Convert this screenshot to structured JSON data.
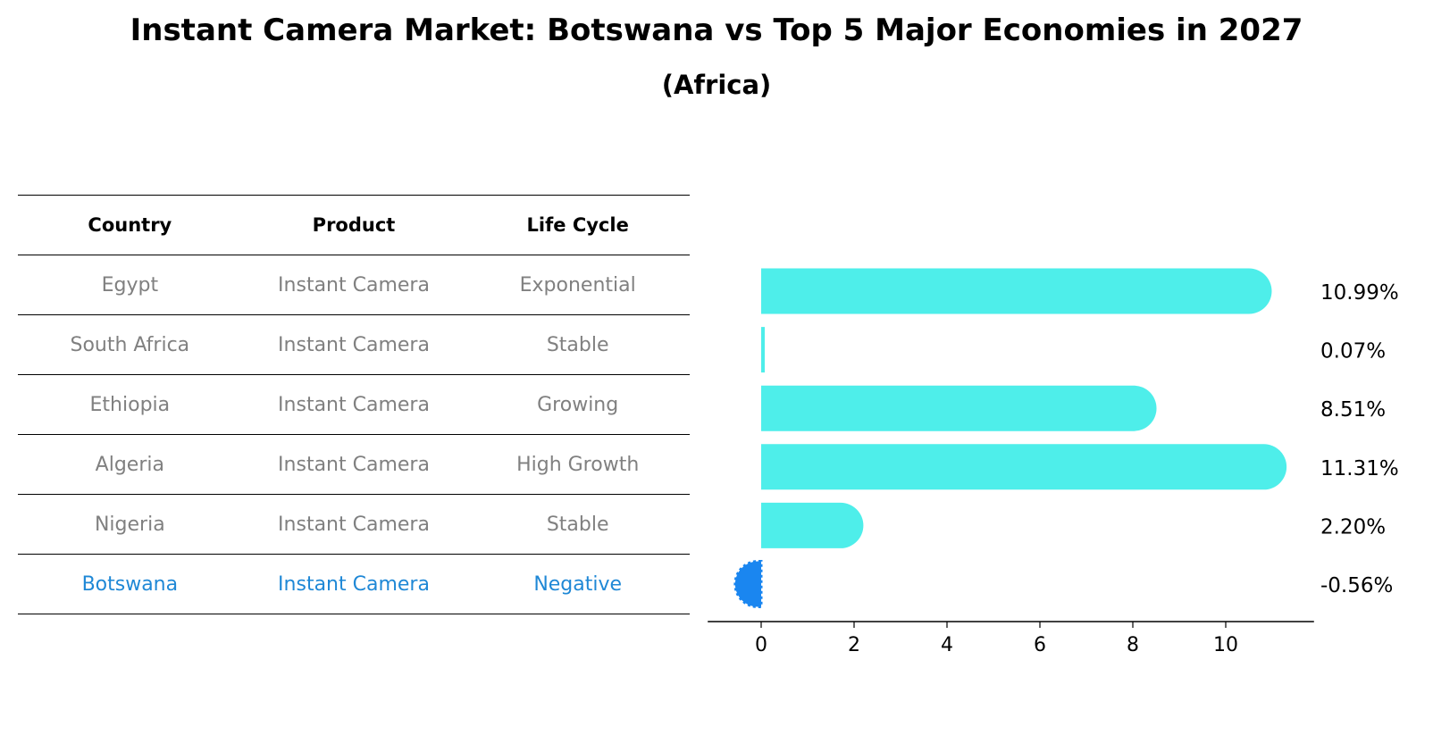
{
  "title": "Instant Camera Market: Botswana vs Top 5 Major Economies in 2027",
  "subtitle": "(Africa)",
  "table": {
    "headers": [
      "Country",
      "Product",
      "Life Cycle"
    ],
    "rows": [
      [
        "Egypt",
        "Instant Camera",
        "Exponential"
      ],
      [
        "South Africa",
        "Instant Camera",
        "Stable"
      ],
      [
        "Ethiopia",
        "Instant Camera",
        "Growing"
      ],
      [
        "Algeria",
        "Instant Camera",
        "High Growth"
      ],
      [
        "Nigeria",
        "Instant Camera",
        "Stable"
      ],
      [
        "Botswana",
        "Instant Camera",
        "Negative"
      ]
    ],
    "highlight_row": 5
  },
  "chart_data": {
    "type": "bar",
    "orientation": "horizontal",
    "categories": [
      "Egypt",
      "South Africa",
      "Ethiopia",
      "Algeria",
      "Nigeria",
      "Botswana"
    ],
    "values": [
      10.99,
      0.07,
      8.51,
      11.31,
      2.2,
      -0.56
    ],
    "value_labels": [
      "10.99%",
      "0.07%",
      "8.51%",
      "11.31%",
      "2.20%",
      "-0.56%"
    ],
    "xticks": [
      "0",
      "2",
      "4",
      "6",
      "8",
      "10"
    ],
    "xlim": [
      -1.15,
      11.9
    ],
    "colors": {
      "positive": "#4eeeea",
      "negative": "#1a86f0"
    },
    "grid": false
  }
}
